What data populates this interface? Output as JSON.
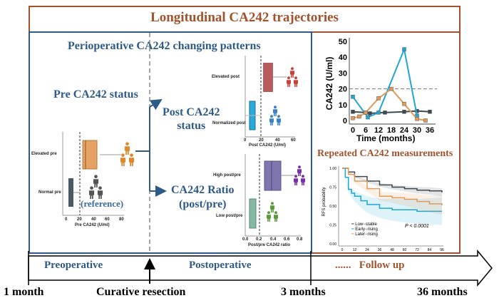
{
  "title": "Longitudinal CA242 trajectories",
  "colors": {
    "frame": "#a0522d",
    "blue_frame": "#2e5a87",
    "elevated_pre": "#e6a264",
    "normal_pre": "#4a5a63",
    "elevated_post": "#b85c5c",
    "normalized_post": "#29a9dc",
    "high_ratio": "#7f76ae",
    "low_ratio": "#86b8a4",
    "low_stable": "#3c4a52",
    "early_rising": "#1fa6d4",
    "later_rising": "#e09a5a"
  },
  "periop": {
    "heading": "Perioperative CA242 changing patterns",
    "pre_status": "Pre CA242 status",
    "post_status_1": "Post CA242",
    "post_status_2": "status",
    "ratio_1": "CA242 Ratio",
    "ratio_2": "(post/pre)",
    "reference": "(reference)",
    "pre_plot": {
      "categories": [
        "Elevated pre",
        "Normal pre"
      ],
      "xlabel": "Pre CA242 (U/ml)",
      "ticks": [
        "0",
        "20",
        "40",
        "60",
        "80"
      ]
    },
    "post_plot": {
      "categories": [
        "Elevated post",
        "Normalized post"
      ],
      "xlabel": "Post CA242 (U/ml)",
      "ticks": [
        "0",
        "20",
        "40",
        "60"
      ]
    },
    "ratio_plot": {
      "categories": [
        "High post/pre",
        "Low post/pre"
      ],
      "xlabel": "Post/pre CA242 ratio",
      "ticks": [
        "0.0",
        "0.2",
        "0.4",
        "0.6",
        "0.8"
      ]
    }
  },
  "chart_data": [
    {
      "type": "line",
      "xlabel": "Time (months)",
      "ylabel": "CA242 (U/ml)",
      "xlim": [
        0,
        36
      ],
      "ylim": [
        0,
        50
      ],
      "xticks": [
        "0",
        "6",
        "12",
        "18",
        "24",
        "30",
        "36"
      ],
      "yticks": [
        "0",
        "10",
        "20",
        "30",
        "40",
        "50"
      ],
      "reference_line": 20,
      "series": [
        {
          "color": "#3c4a52",
          "x": [
            0,
            6,
            8,
            15,
            24,
            30,
            36
          ],
          "y": [
            5.5,
            5,
            4.5,
            5,
            5.5,
            6,
            5.5
          ]
        },
        {
          "color": "#1fa6d4",
          "x": [
            0,
            7,
            12,
            24,
            30
          ],
          "y": [
            15,
            2,
            5,
            45,
            3
          ]
        },
        {
          "color": "#e09a5a",
          "x": [
            0,
            3,
            6,
            12,
            18,
            24,
            30,
            34
          ],
          "y": [
            1.5,
            2.5,
            5,
            14,
            20,
            10.5,
            1,
            0
          ]
        }
      ]
    },
    {
      "type": "line",
      "title": "Repeated CA242 measurements",
      "ylabel": "RFS probability",
      "xlim": [
        0,
        96
      ],
      "ylim": [
        0,
        1
      ],
      "xticks": [
        "0",
        "12",
        "24",
        "36",
        "48",
        "60",
        "72",
        "84",
        "96"
      ],
      "yticks": [
        "0.00",
        "0.25",
        "0.50",
        "0.75",
        "1.00"
      ],
      "annotation": "P < 0.0001",
      "legend_position": "bottom-left",
      "series": [
        {
          "name": "Low−stable",
          "color": "#3c4a52",
          "x": [
            0,
            6,
            12,
            24,
            36,
            48,
            60,
            72,
            84,
            96
          ],
          "y": [
            1,
            0.95,
            0.89,
            0.83,
            0.78,
            0.75,
            0.73,
            0.71,
            0.7,
            0.68
          ]
        },
        {
          "name": "Early−rising",
          "color": "#1fa6d4",
          "x": [
            0,
            3,
            6,
            9,
            12,
            18,
            24,
            36,
            48,
            72,
            96
          ],
          "y": [
            1,
            0.88,
            0.72,
            0.67,
            0.63,
            0.57,
            0.52,
            0.47,
            0.45,
            0.43,
            0.43
          ]
        },
        {
          "name": "Later−rising",
          "color": "#e09a5a",
          "x": [
            0,
            6,
            12,
            24,
            36,
            48,
            60,
            72,
            84,
            96
          ],
          "y": [
            1,
            0.92,
            0.83,
            0.73,
            0.63,
            0.61,
            0.59,
            0.56,
            0.53,
            0.51
          ]
        }
      ]
    }
  ],
  "timeline": {
    "preoperative": "Preoperative",
    "postoperative": "Postoperative",
    "follow_up": "Follow up",
    "dots": "......",
    "t1": "1 month",
    "t2": "Curative resection",
    "t3": "3 months",
    "t4": "36 months"
  }
}
